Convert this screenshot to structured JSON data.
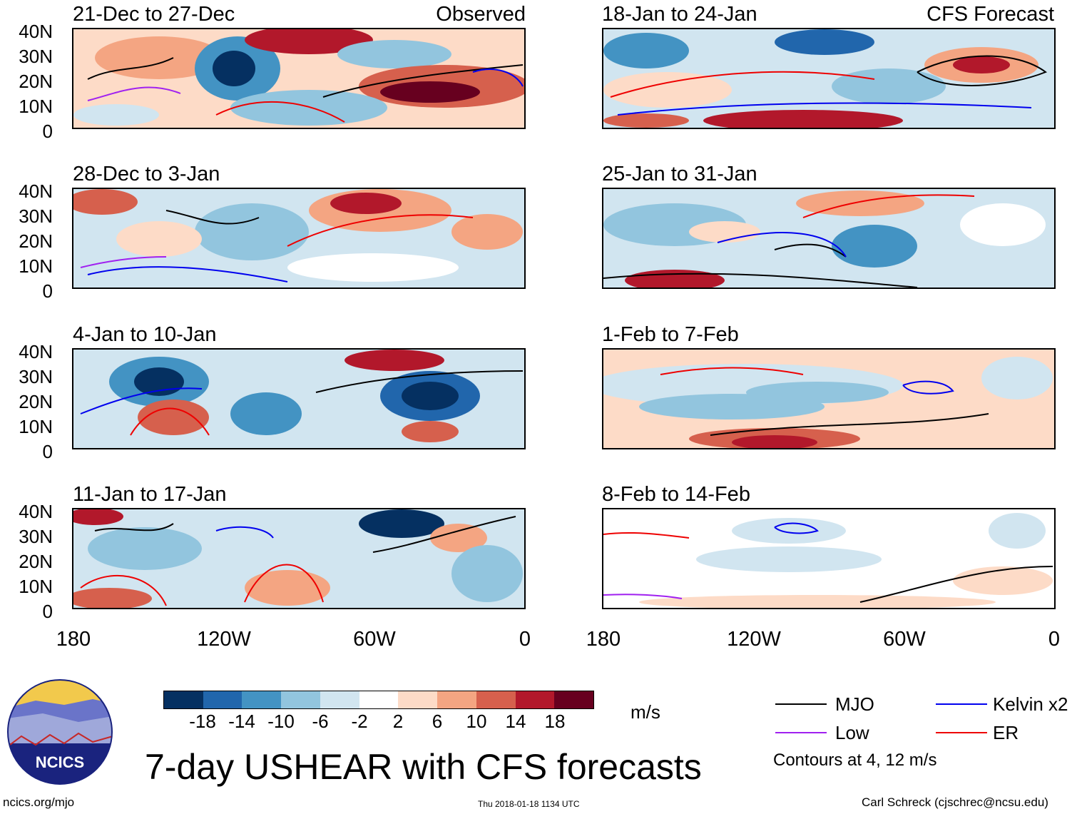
{
  "panels": [
    {
      "title": "21-Dec to 27-Dec",
      "label": "Observed"
    },
    {
      "title": "18-Jan to 24-Jan",
      "label": "CFS Forecast"
    },
    {
      "title": "28-Dec to 3-Jan"
    },
    {
      "title": "25-Jan to 31-Jan"
    },
    {
      "title": "4-Jan to 10-Jan"
    },
    {
      "title": "1-Feb to 7-Feb"
    },
    {
      "title": "11-Jan to 17-Jan"
    },
    {
      "title": "8-Feb to 14-Feb"
    }
  ],
  "lat_labels": [
    "40N",
    "30N",
    "20N",
    "10N",
    "0"
  ],
  "lon_labels": [
    "180",
    "120W",
    "60W",
    "0"
  ],
  "colorbar": {
    "colors": [
      "#053061",
      "#2166ac",
      "#4393c3",
      "#92c5de",
      "#d1e5f0",
      "#ffffff",
      "#fddbc7",
      "#f4a582",
      "#d6604d",
      "#b2182b",
      "#67001f"
    ],
    "labels": [
      "-18",
      "-14",
      "-10",
      "-6",
      "-2",
      "2",
      "6",
      "10",
      "14",
      "18"
    ],
    "unit": "m/s"
  },
  "legend": {
    "items": [
      {
        "label": "MJO",
        "color": "#000000"
      },
      {
        "label": "Kelvin x2",
        "color": "#0000ee"
      },
      {
        "label": "Low",
        "color": "#a020f0"
      },
      {
        "label": "ER",
        "color": "#ee0000"
      }
    ],
    "note": "Contours at 4, 12 m/s"
  },
  "logo_text": "NCICS",
  "main_title": "7-day USHEAR with CFS forecasts",
  "footer": {
    "left": "ncics.org/mjo",
    "center": "Thu 2018-01-18 1134 UTC",
    "right": "Carl Schreck (cjschrec@ncsu.edu)"
  }
}
